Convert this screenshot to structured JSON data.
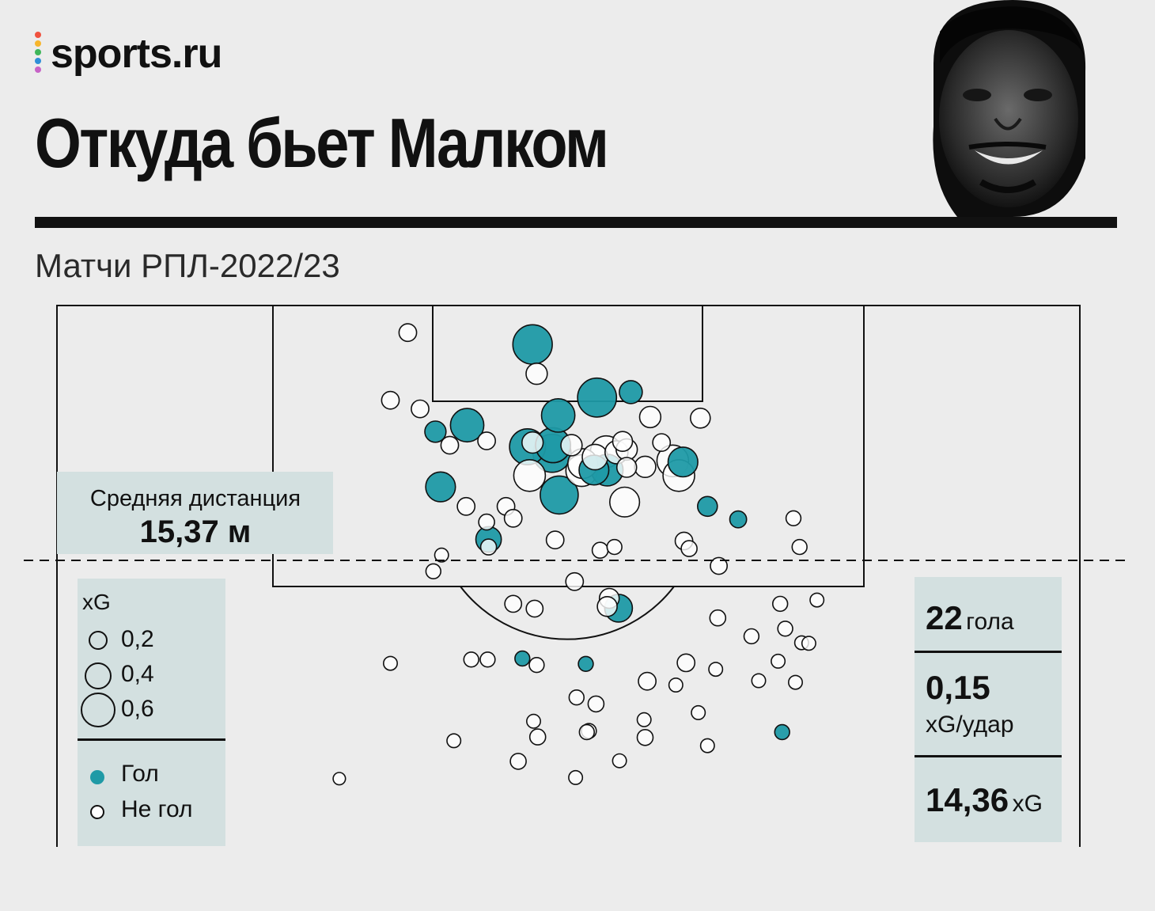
{
  "brand": {
    "name": "sports.ru",
    "dot_colors": [
      "#f0523f",
      "#f7b52c",
      "#3fb65a",
      "#2f8fd8",
      "#c763c7"
    ]
  },
  "header": {
    "title": "Откуда бьет Малком",
    "subtitle": "Матчи РПЛ-2022/23"
  },
  "average_distance": {
    "label": "Средняя дистанция",
    "value": "15,37 м"
  },
  "legend": {
    "title": "xG",
    "sizes": [
      {
        "xg": 0.2,
        "label": "0,2"
      },
      {
        "xg": 0.4,
        "label": "0,4"
      },
      {
        "xg": 0.6,
        "label": "0,6"
      }
    ],
    "outcomes": [
      {
        "label": "Гол",
        "type": "goal"
      },
      {
        "label": "Не гол",
        "type": "miss"
      }
    ]
  },
  "stats": {
    "goals_value": "22",
    "goals_unit": "гола",
    "xg_per_shot_value": "0,15",
    "xg_per_shot_unit": "xG/удар",
    "total_xg_value": "14,36",
    "total_xg_unit": "xG"
  },
  "colors": {
    "background": "#ececec",
    "goal": "#1f9aa6",
    "goal_dark": "#1e6fb0",
    "miss": "#ffffff",
    "box_fill": "#d3e0e0",
    "line": "#111111"
  },
  "chart_data": {
    "type": "scatter",
    "description_units": "x: 0 = left edge of the drawn area, 100 = right; y: 0 = goal line, 100 = bottom of drawn area; xg = expected goals",
    "average_distance_line": true,
    "shots": [
      {
        "x": 34.3,
        "y": 5.0,
        "xg": 0.07,
        "goal": false
      },
      {
        "x": 46.5,
        "y": 7.2,
        "xg": 0.6,
        "goal": true
      },
      {
        "x": 46.9,
        "y": 12.6,
        "xg": 0.12,
        "goal": false
      },
      {
        "x": 52.8,
        "y": 17.0,
        "xg": 0.58,
        "goal": true
      },
      {
        "x": 56.1,
        "y": 16.0,
        "xg": 0.15,
        "goal": true
      },
      {
        "x": 32.6,
        "y": 17.5,
        "xg": 0.07,
        "goal": false
      },
      {
        "x": 35.5,
        "y": 19.1,
        "xg": 0.07,
        "goal": false
      },
      {
        "x": 49.0,
        "y": 20.3,
        "xg": 0.4,
        "goal": true
      },
      {
        "x": 40.1,
        "y": 22.1,
        "xg": 0.4,
        "goal": true
      },
      {
        "x": 37.0,
        "y": 23.3,
        "xg": 0.12,
        "goal": true
      },
      {
        "x": 38.4,
        "y": 25.8,
        "xg": 0.07,
        "goal": false
      },
      {
        "x": 42.0,
        "y": 25.0,
        "xg": 0.07,
        "goal": false
      },
      {
        "x": 46.0,
        "y": 26.1,
        "xg": 0.48,
        "goal": true
      },
      {
        "x": 46.5,
        "y": 25.3,
        "xg": 0.12,
        "goal": false
      },
      {
        "x": 48.5,
        "y": 25.8,
        "xg": 0.45,
        "goal": true
      },
      {
        "x": 48.4,
        "y": 27.3,
        "xg": 0.55,
        "goal": true
      },
      {
        "x": 50.3,
        "y": 25.8,
        "xg": 0.12,
        "goal": false
      },
      {
        "x": 51.4,
        "y": 29.2,
        "xg": 0.3,
        "goal": false
      },
      {
        "x": 52.6,
        "y": 28.0,
        "xg": 0.2,
        "goal": false
      },
      {
        "x": 53.7,
        "y": 27.0,
        "xg": 0.35,
        "goal": false
      },
      {
        "x": 55.3,
        "y": 25.1,
        "xg": 0.1,
        "goal": false
      },
      {
        "x": 54.7,
        "y": 27.1,
        "xg": 0.15,
        "goal": false
      },
      {
        "x": 55.7,
        "y": 26.6,
        "xg": 0.12,
        "goal": false
      },
      {
        "x": 51.3,
        "y": 30.5,
        "xg": 0.35,
        "goal": false
      },
      {
        "x": 52.5,
        "y": 30.4,
        "xg": 0.3,
        "goal": true
      },
      {
        "x": 53.8,
        "y": 30.4,
        "xg": 0.35,
        "goal": true
      },
      {
        "x": 55.7,
        "y": 29.9,
        "xg": 0.1,
        "goal": false
      },
      {
        "x": 58.0,
        "y": 20.6,
        "xg": 0.12,
        "goal": false
      },
      {
        "x": 59.1,
        "y": 25.3,
        "xg": 0.07,
        "goal": false
      },
      {
        "x": 60.2,
        "y": 28.7,
        "xg": 0.35,
        "goal": false
      },
      {
        "x": 61.2,
        "y": 28.9,
        "xg": 0.3,
        "goal": true
      },
      {
        "x": 57.5,
        "y": 29.8,
        "xg": 0.12,
        "goal": false
      },
      {
        "x": 62.9,
        "y": 20.8,
        "xg": 0.1,
        "goal": false
      },
      {
        "x": 46.2,
        "y": 31.4,
        "xg": 0.35,
        "goal": false
      },
      {
        "x": 37.5,
        "y": 33.5,
        "xg": 0.3,
        "goal": true
      },
      {
        "x": 60.8,
        "y": 31.4,
        "xg": 0.35,
        "goal": false
      },
      {
        "x": 49.1,
        "y": 35.0,
        "xg": 0.55,
        "goal": true
      },
      {
        "x": 55.5,
        "y": 36.3,
        "xg": 0.3,
        "goal": false
      },
      {
        "x": 40.0,
        "y": 37.1,
        "xg": 0.07,
        "goal": false
      },
      {
        "x": 43.9,
        "y": 37.1,
        "xg": 0.07,
        "goal": false
      },
      {
        "x": 44.6,
        "y": 39.3,
        "xg": 0.07,
        "goal": false
      },
      {
        "x": 42.0,
        "y": 40.0,
        "xg": 0.05,
        "goal": false
      },
      {
        "x": 63.6,
        "y": 37.1,
        "xg": 0.1,
        "goal": true
      },
      {
        "x": 66.6,
        "y": 39.5,
        "xg": 0.06,
        "goal": true
      },
      {
        "x": 72.0,
        "y": 39.3,
        "xg": 0.04,
        "goal": false
      },
      {
        "x": 42.2,
        "y": 43.2,
        "xg": 0.2,
        "goal": true
      },
      {
        "x": 42.2,
        "y": 44.6,
        "xg": 0.05,
        "goal": false
      },
      {
        "x": 48.7,
        "y": 43.3,
        "xg": 0.07,
        "goal": false
      },
      {
        "x": 53.1,
        "y": 45.2,
        "xg": 0.05,
        "goal": false
      },
      {
        "x": 54.5,
        "y": 44.6,
        "xg": 0.04,
        "goal": false
      },
      {
        "x": 61.3,
        "y": 43.5,
        "xg": 0.07,
        "goal": false
      },
      {
        "x": 61.8,
        "y": 44.9,
        "xg": 0.05,
        "goal": false
      },
      {
        "x": 72.6,
        "y": 44.6,
        "xg": 0.04,
        "goal": false
      },
      {
        "x": 37.6,
        "y": 46.1,
        "xg": 0.03,
        "goal": false
      },
      {
        "x": 64.7,
        "y": 48.1,
        "xg": 0.06,
        "goal": false
      },
      {
        "x": 36.8,
        "y": 49.1,
        "xg": 0.04,
        "goal": false
      },
      {
        "x": 50.6,
        "y": 51.0,
        "xg": 0.07,
        "goal": false
      },
      {
        "x": 54.0,
        "y": 54.1,
        "xg": 0.1,
        "goal": false
      },
      {
        "x": 53.8,
        "y": 55.6,
        "xg": 0.1,
        "goal": false
      },
      {
        "x": 54.9,
        "y": 55.9,
        "xg": 0.25,
        "goal": true
      },
      {
        "x": 44.6,
        "y": 55.1,
        "xg": 0.06,
        "goal": false
      },
      {
        "x": 46.7,
        "y": 56.0,
        "xg": 0.06,
        "goal": false
      },
      {
        "x": 70.7,
        "y": 55.1,
        "xg": 0.04,
        "goal": false
      },
      {
        "x": 74.3,
        "y": 54.4,
        "xg": 0.03,
        "goal": false
      },
      {
        "x": 64.6,
        "y": 57.7,
        "xg": 0.05,
        "goal": false
      },
      {
        "x": 71.2,
        "y": 59.7,
        "xg": 0.04,
        "goal": false
      },
      {
        "x": 67.9,
        "y": 61.1,
        "xg": 0.04,
        "goal": false
      },
      {
        "x": 72.8,
        "y": 62.3,
        "xg": 0.03,
        "goal": false
      },
      {
        "x": 73.5,
        "y": 62.4,
        "xg": 0.03,
        "goal": false
      },
      {
        "x": 32.6,
        "y": 66.1,
        "xg": 0.03,
        "goal": false
      },
      {
        "x": 40.5,
        "y": 65.4,
        "xg": 0.04,
        "goal": false
      },
      {
        "x": 42.1,
        "y": 65.4,
        "xg": 0.04,
        "goal": false
      },
      {
        "x": 45.5,
        "y": 65.2,
        "xg": 0.04,
        "goal": true
      },
      {
        "x": 46.9,
        "y": 66.4,
        "xg": 0.04,
        "goal": false
      },
      {
        "x": 51.7,
        "y": 66.2,
        "xg": 0.04,
        "goal": true
      },
      {
        "x": 61.5,
        "y": 66.0,
        "xg": 0.07,
        "goal": false
      },
      {
        "x": 64.4,
        "y": 67.2,
        "xg": 0.03,
        "goal": false
      },
      {
        "x": 70.5,
        "y": 65.7,
        "xg": 0.03,
        "goal": false
      },
      {
        "x": 57.7,
        "y": 69.4,
        "xg": 0.07,
        "goal": false
      },
      {
        "x": 60.5,
        "y": 70.1,
        "xg": 0.03,
        "goal": false
      },
      {
        "x": 68.6,
        "y": 69.3,
        "xg": 0.03,
        "goal": false
      },
      {
        "x": 72.2,
        "y": 69.6,
        "xg": 0.03,
        "goal": false
      },
      {
        "x": 50.8,
        "y": 72.4,
        "xg": 0.04,
        "goal": false
      },
      {
        "x": 52.7,
        "y": 73.6,
        "xg": 0.05,
        "goal": false
      },
      {
        "x": 62.7,
        "y": 75.2,
        "xg": 0.03,
        "goal": false
      },
      {
        "x": 46.6,
        "y": 76.8,
        "xg": 0.03,
        "goal": false
      },
      {
        "x": 57.4,
        "y": 76.5,
        "xg": 0.03,
        "goal": false
      },
      {
        "x": 52.0,
        "y": 78.6,
        "xg": 0.04,
        "goal": false
      },
      {
        "x": 51.8,
        "y": 78.8,
        "xg": 0.04,
        "goal": false
      },
      {
        "x": 47.0,
        "y": 79.7,
        "xg": 0.05,
        "goal": false
      },
      {
        "x": 57.5,
        "y": 79.8,
        "xg": 0.05,
        "goal": false
      },
      {
        "x": 38.8,
        "y": 80.4,
        "xg": 0.03,
        "goal": false
      },
      {
        "x": 63.6,
        "y": 81.3,
        "xg": 0.03,
        "goal": false
      },
      {
        "x": 70.9,
        "y": 78.8,
        "xg": 0.04,
        "goal": true
      },
      {
        "x": 45.1,
        "y": 84.2,
        "xg": 0.05,
        "goal": false
      },
      {
        "x": 55.0,
        "y": 84.1,
        "xg": 0.03,
        "goal": false
      },
      {
        "x": 27.6,
        "y": 87.4,
        "xg": 0.02,
        "goal": false
      },
      {
        "x": 50.7,
        "y": 87.2,
        "xg": 0.03,
        "goal": false
      }
    ]
  }
}
